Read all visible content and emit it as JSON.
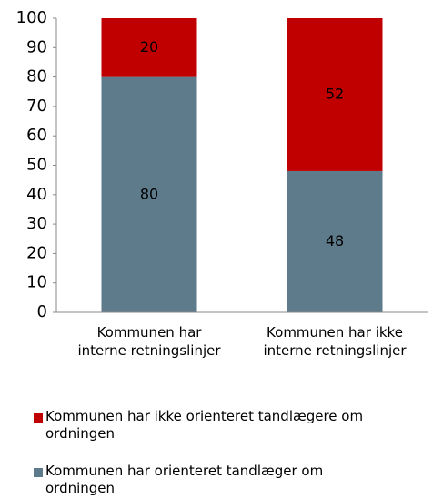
{
  "chart_data": {
    "type": "stacked_bar",
    "categories": [
      "Kommunen har\ninterne retningslinjer",
      "Kommunen har ikke\ninterne retningslinjer"
    ],
    "series": [
      {
        "name": "Kommunen har orienteret tandlæger om\nordningen",
        "color": "#5e7b8b",
        "values": [
          80,
          48
        ]
      },
      {
        "name": "Kommunen har ikke orienteret tandlægere om\nordningen",
        "color": "#c00000",
        "values": [
          20,
          52
        ]
      }
    ],
    "ylim": [
      0,
      100
    ],
    "yticks": [
      0,
      10,
      20,
      30,
      40,
      50,
      60,
      70,
      80,
      90,
      100
    ],
    "grid": false
  }
}
